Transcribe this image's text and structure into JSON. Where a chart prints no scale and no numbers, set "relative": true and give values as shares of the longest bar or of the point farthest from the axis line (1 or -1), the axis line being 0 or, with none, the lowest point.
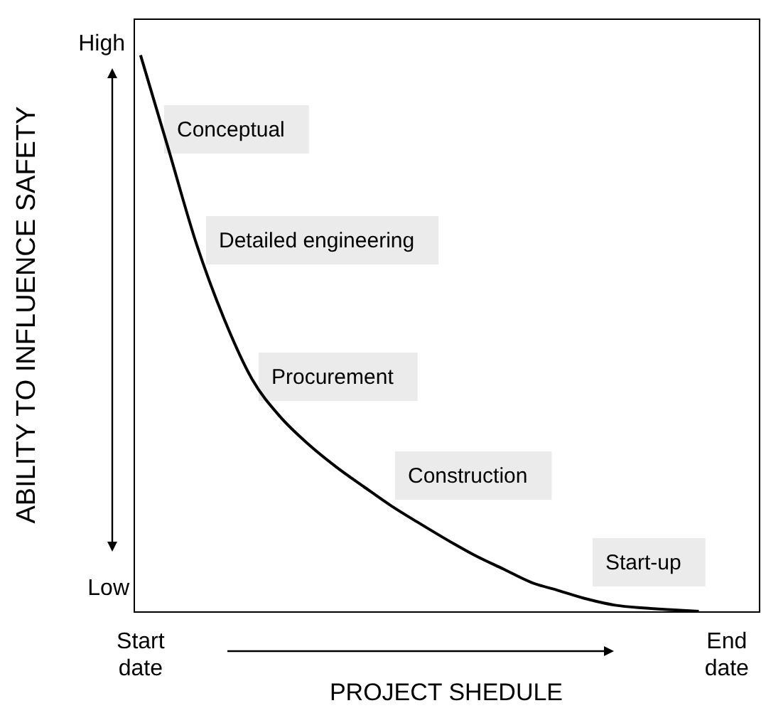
{
  "chart_data": {
    "type": "line",
    "relative": true,
    "xlabel": "PROJECT SHEDULE",
    "ylabel": "ABILITY TO INFLUENCE SAFETY",
    "categories": [
      "Start date",
      null,
      null,
      null,
      null,
      null,
      null,
      null,
      null,
      null,
      null,
      null,
      null,
      null,
      null,
      null,
      null,
      null,
      null,
      null,
      null,
      "End date"
    ],
    "series": [
      {
        "color": "#000000",
        "values": [
          1,
          0.831,
          0.661,
          0.525,
          0.417,
          0.35,
          0.301,
          0.26,
          0.224,
          0.189,
          0.158,
          0.128,
          0.1,
          0.076,
          0.052,
          0.037,
          0.022,
          0.011,
          0.006,
          0.003,
          0,
          null
        ]
      }
    ],
    "annotations": [
      "High",
      "Low",
      "Conceptual",
      "Detailed engineering",
      "Procurement",
      "Construction",
      "Start-up"
    ],
    "grid": false,
    "legend": false,
    "marker": "none",
    "line_style": "solid"
  }
}
